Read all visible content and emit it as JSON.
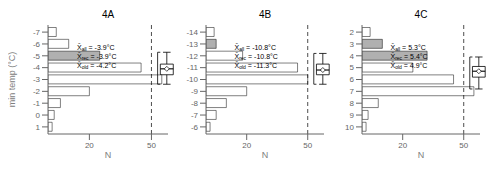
{
  "chart_data": [
    {
      "type": "bar",
      "orientation": "horizontal",
      "title": "4A",
      "xlabel": "N",
      "ylabel": "min temp (°C)",
      "x": [
        1,
        0,
        -1,
        -2,
        -3,
        -4,
        -5,
        -6,
        -7
      ],
      "values": [
        2,
        3,
        6,
        20,
        55,
        45,
        25,
        10,
        4
      ],
      "colors": [
        "#ffffff",
        "#ffffff",
        "#ffffff",
        "#ffffff",
        "#ffffff",
        "#ffffff",
        "#b0b0b0",
        "#ffffff",
        "#ffffff"
      ],
      "xlim": [
        0,
        58
      ],
      "xticks": [
        20,
        50
      ],
      "ylim": [
        -7.6,
        1.6
      ],
      "yticks": [
        1,
        0,
        -1,
        -2,
        -3,
        -4,
        -5,
        -6,
        -7
      ],
      "reference_line": 50,
      "box": {
        "median": -3.9,
        "q1": -4.3,
        "q3": -3.4,
        "whisker_lo": -5.3,
        "whisker_hi": -2.6
      },
      "annotations": [
        "X̄all = -3.9°C",
        "X̄rec = -3.9°C",
        "X̄old = -4.2°C"
      ]
    },
    {
      "type": "bar",
      "orientation": "horizontal",
      "title": "4B",
      "xlabel": "N",
      "x": [
        -6,
        -7,
        -8,
        -9,
        -10,
        -11,
        -12,
        -13,
        -14
      ],
      "values": [
        2,
        5,
        10,
        20,
        50,
        45,
        18,
        5,
        4
      ],
      "colors": [
        "#ffffff",
        "#ffffff",
        "#ffffff",
        "#ffffff",
        "#ffffff",
        "#ffffff",
        "#ffffff",
        "#b0b0b0",
        "#ffffff"
      ],
      "xlim": [
        0,
        58
      ],
      "xticks": [
        20,
        50
      ],
      "ylim": [
        -14.6,
        -5.4
      ],
      "yticks": [
        -6,
        -7,
        -8,
        -9,
        -10,
        -11,
        -12,
        -13,
        -14
      ],
      "reference_line": 50,
      "box": {
        "median": -10.8,
        "q1": -11.3,
        "q3": -10.4,
        "whisker_lo": -12.2,
        "whisker_hi": -9.6
      },
      "annotations": [
        "X̄all = -10.8°C",
        "X̄rec = -10.8°C",
        "X̄old = -11.3°C"
      ]
    },
    {
      "type": "bar",
      "orientation": "horizontal",
      "title": "4C",
      "xlabel": "N",
      "x": [
        10,
        9,
        8,
        7,
        6,
        5,
        4,
        3,
        2
      ],
      "values": [
        2,
        3,
        8,
        55,
        45,
        25,
        32,
        10,
        4
      ],
      "colors": [
        "#ffffff",
        "#ffffff",
        "#ffffff",
        "#ffffff",
        "#ffffff",
        "#ffffff",
        "#b0b0b0",
        "#b0b0b0",
        "#ffffff"
      ],
      "xlim": [
        0,
        58
      ],
      "xticks": [
        20,
        50
      ],
      "ylim": [
        1.4,
        10.6
      ],
      "yticks": [
        10,
        9,
        8,
        7,
        6,
        5,
        4,
        3,
        2
      ],
      "reference_line": 50,
      "box": {
        "median": 5.3,
        "q1": 4.9,
        "q3": 5.8,
        "whisker_lo": 4.1,
        "whisker_hi": 6.8
      },
      "annotations": [
        "X̄all = 5.3°C",
        "X̄rec = 5.4°C",
        "X̄old = 4.9°C"
      ]
    }
  ]
}
